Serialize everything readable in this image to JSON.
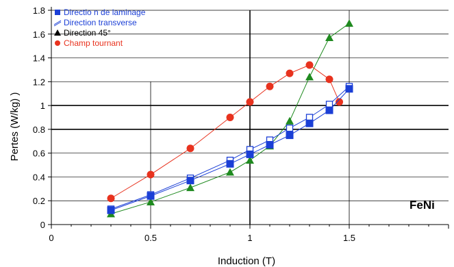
{
  "chart_data": {
    "type": "line",
    "xlabel": "Induction  (T)",
    "ylabel": "Pertes (W/kg)  )",
    "xlim": [
      0,
      2
    ],
    "ylim": [
      0,
      1.8
    ],
    "xticks": [
      0,
      0.5,
      1,
      1.5
    ],
    "xtick_labels": [
      "0",
      "0.5",
      "1",
      "1.5"
    ],
    "yticks": [
      0,
      0.2,
      0.4,
      0.6,
      0.8,
      1,
      1.2,
      1.4,
      1.6,
      1.8
    ],
    "ytick_labels": [
      "0",
      "0.2",
      "0.4",
      "0.6",
      "0.8",
      "1",
      "1.2",
      "1.4",
      "1.6",
      "1.8"
    ],
    "grid": "horizontal lines every 0.2 (bold at 0.8 and 1.0) and vertical lines at 0.5, 1.0, 1.5 (bold at 1.0)",
    "legend_position": "top-left",
    "annotation": "FeNi",
    "series": [
      {
        "name": "Directio n de laminage",
        "label_color": "#1b3fd6",
        "color": "#1b3fd6",
        "marker": "filled-square",
        "x": [
          0.3,
          0.5,
          0.7,
          0.9,
          1.0,
          1.1,
          1.2,
          1.3,
          1.4,
          1.5
        ],
        "y": [
          0.12,
          0.24,
          0.37,
          0.51,
          0.59,
          0.67,
          0.75,
          0.85,
          0.96,
          1.14
        ]
      },
      {
        "name": "Direction transverse",
        "label_color": "#1b3fd6",
        "color": "#1b3fd6",
        "marker": "open-square",
        "x": [
          0.3,
          0.5,
          0.7,
          0.9,
          1.0,
          1.1,
          1.2,
          1.3,
          1.4,
          1.5
        ],
        "y": [
          0.13,
          0.25,
          0.39,
          0.54,
          0.63,
          0.71,
          0.81,
          0.9,
          1.01,
          1.16
        ]
      },
      {
        "name": "Direction 45°",
        "label_color": "#000000",
        "color": "#1f8a1f",
        "marker": "triangle",
        "x": [
          0.3,
          0.5,
          0.7,
          0.9,
          1.0,
          1.1,
          1.2,
          1.3,
          1.4,
          1.5
        ],
        "y": [
          0.09,
          0.19,
          0.31,
          0.44,
          0.54,
          0.66,
          0.87,
          1.24,
          1.57,
          1.69
        ]
      },
      {
        "name": "Champ tournant",
        "label_color": "#e8321e",
        "color": "#e8321e",
        "marker": "circle",
        "x": [
          0.3,
          0.5,
          0.7,
          0.9,
          1.0,
          1.1,
          1.2,
          1.3,
          1.4,
          1.45
        ],
        "y": [
          0.22,
          0.42,
          0.64,
          0.9,
          1.03,
          1.16,
          1.27,
          1.34,
          1.22,
          1.03
        ]
      }
    ]
  }
}
